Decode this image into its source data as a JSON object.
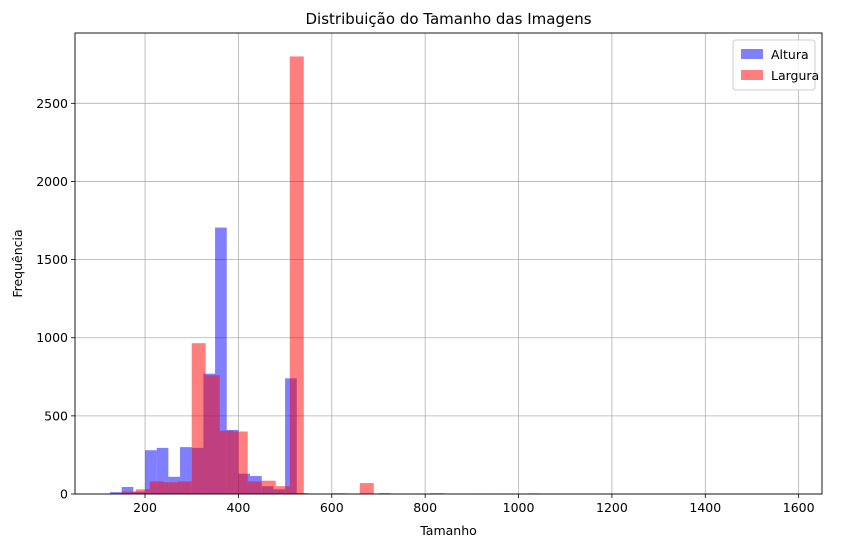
{
  "chart_data": {
    "type": "bar",
    "title": "Distribuição do Tamanho das Imagens",
    "xlabel": "Tamanho",
    "ylabel": "Frequência",
    "xlim": [
      50,
      1650
    ],
    "ylim": [
      0,
      2950
    ],
    "xticks": [
      200,
      400,
      600,
      800,
      1000,
      1200,
      1400,
      1600
    ],
    "yticks": [
      0,
      500,
      1000,
      1500,
      2000,
      2500
    ],
    "grid": true,
    "legend_position": "top-right",
    "series": [
      {
        "name": "Altura",
        "color": "#0000ff",
        "alpha": 0.5,
        "bins": [
          {
            "x0": 125,
            "x1": 150,
            "value": 12
          },
          {
            "x0": 150,
            "x1": 175,
            "value": 45
          },
          {
            "x0": 175,
            "x1": 200,
            "value": 15
          },
          {
            "x0": 200,
            "x1": 225,
            "value": 280
          },
          {
            "x0": 225,
            "x1": 250,
            "value": 295
          },
          {
            "x0": 250,
            "x1": 275,
            "value": 110
          },
          {
            "x0": 275,
            "x1": 300,
            "value": 300
          },
          {
            "x0": 300,
            "x1": 325,
            "value": 295
          },
          {
            "x0": 325,
            "x1": 350,
            "value": 770
          },
          {
            "x0": 350,
            "x1": 375,
            "value": 1705
          },
          {
            "x0": 375,
            "x1": 400,
            "value": 410
          },
          {
            "x0": 400,
            "x1": 425,
            "value": 130
          },
          {
            "x0": 425,
            "x1": 450,
            "value": 115
          },
          {
            "x0": 450,
            "x1": 475,
            "value": 50
          },
          {
            "x0": 475,
            "x1": 500,
            "value": 30
          },
          {
            "x0": 500,
            "x1": 525,
            "value": 740
          },
          {
            "x0": 525,
            "x1": 550,
            "value": 5
          },
          {
            "x0": 600,
            "x1": 625,
            "value": 3
          },
          {
            "x0": 700,
            "x1": 725,
            "value": 5
          },
          {
            "x0": 725,
            "x1": 750,
            "value": 3
          },
          {
            "x0": 775,
            "x1": 800,
            "value": 3
          },
          {
            "x0": 825,
            "x1": 850,
            "value": 2
          }
        ]
      },
      {
        "name": "Largura",
        "color": "#ff0000",
        "alpha": 0.5,
        "bins": [
          {
            "x0": 150,
            "x1": 180,
            "value": 15
          },
          {
            "x0": 180,
            "x1": 210,
            "value": 30
          },
          {
            "x0": 210,
            "x1": 240,
            "value": 80
          },
          {
            "x0": 240,
            "x1": 270,
            "value": 75
          },
          {
            "x0": 270,
            "x1": 300,
            "value": 80
          },
          {
            "x0": 300,
            "x1": 330,
            "value": 965
          },
          {
            "x0": 330,
            "x1": 360,
            "value": 760
          },
          {
            "x0": 360,
            "x1": 390,
            "value": 405
          },
          {
            "x0": 390,
            "x1": 420,
            "value": 400
          },
          {
            "x0": 420,
            "x1": 450,
            "value": 80
          },
          {
            "x0": 450,
            "x1": 480,
            "value": 85
          },
          {
            "x0": 480,
            "x1": 510,
            "value": 50
          },
          {
            "x0": 510,
            "x1": 540,
            "value": 2800
          },
          {
            "x0": 600,
            "x1": 630,
            "value": 5
          },
          {
            "x0": 630,
            "x1": 660,
            "value": 3
          },
          {
            "x0": 660,
            "x1": 690,
            "value": 70
          },
          {
            "x0": 720,
            "x1": 750,
            "value": 3
          },
          {
            "x0": 810,
            "x1": 840,
            "value": 5
          },
          {
            "x0": 900,
            "x1": 930,
            "value": 3
          },
          {
            "x0": 930,
            "x1": 960,
            "value": 2
          },
          {
            "x0": 960,
            "x1": 990,
            "value": 3
          },
          {
            "x0": 1020,
            "x1": 1050,
            "value": 4
          },
          {
            "x0": 1050,
            "x1": 1080,
            "value": 2
          }
        ]
      }
    ]
  }
}
